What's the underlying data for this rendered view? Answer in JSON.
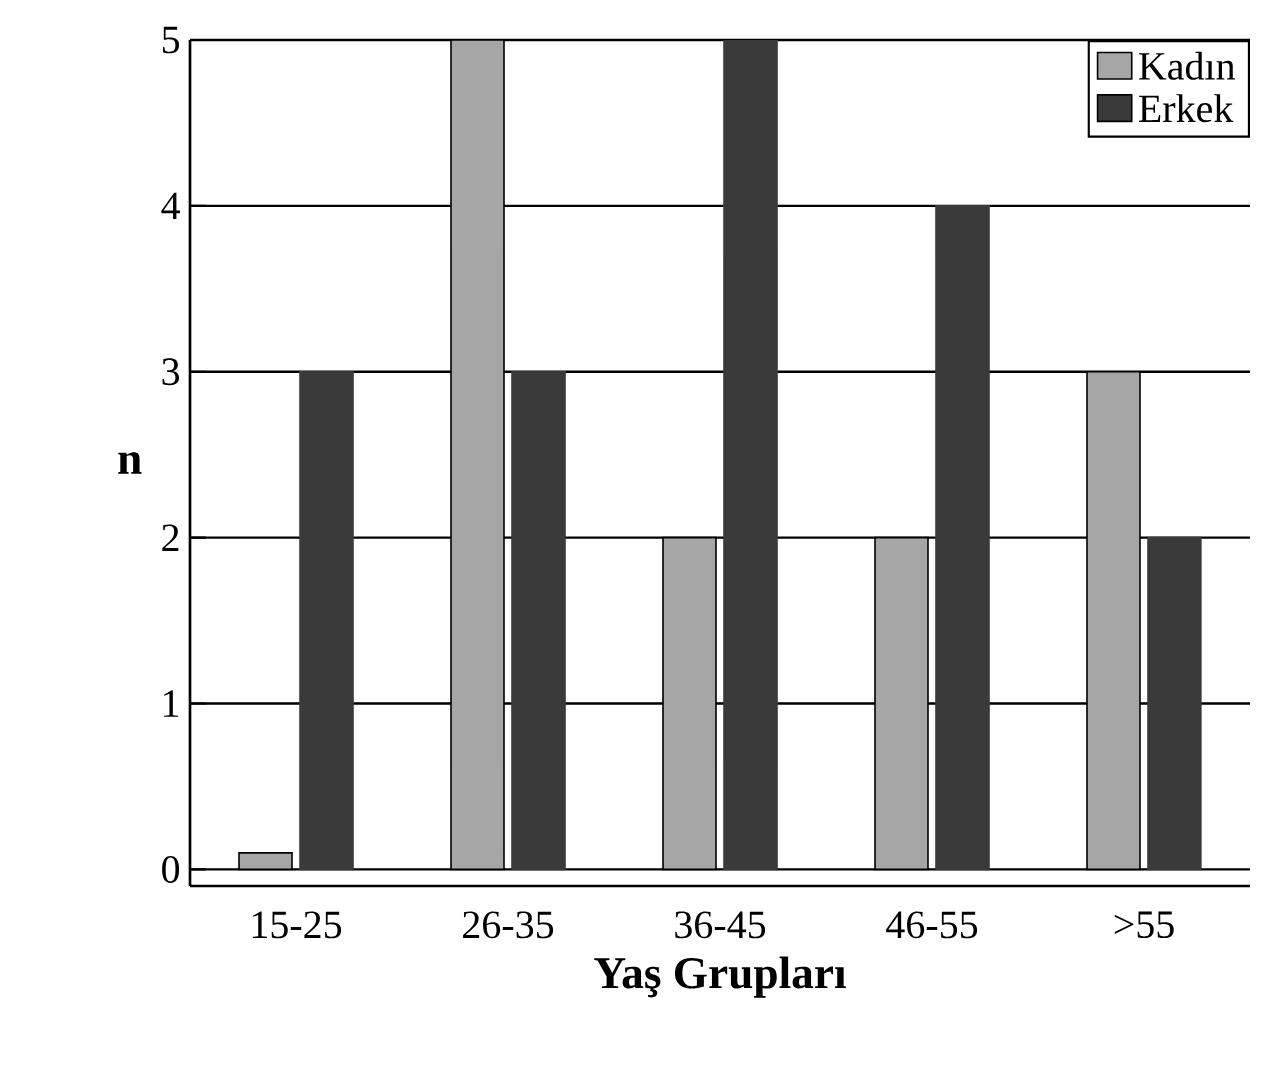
{
  "chart_data": {
    "type": "bar",
    "xlabel": "Yaş Grupları",
    "ylabel": "n",
    "categories": [
      "15-25",
      "26-35",
      "36-45",
      "46-55",
      ">55"
    ],
    "series": [
      {
        "name": "Kadın",
        "color": "#a6a6a6",
        "values": [
          0.1,
          5,
          2,
          2,
          3
        ]
      },
      {
        "name": "Erkek",
        "color": "#3a3a3a",
        "values": [
          3,
          3,
          5,
          4,
          2
        ]
      }
    ],
    "ylim": [
      -0.1,
      5
    ],
    "yticks": [
      0,
      1,
      2,
      3,
      4,
      5
    ],
    "grid": "y",
    "legend": "top right"
  }
}
